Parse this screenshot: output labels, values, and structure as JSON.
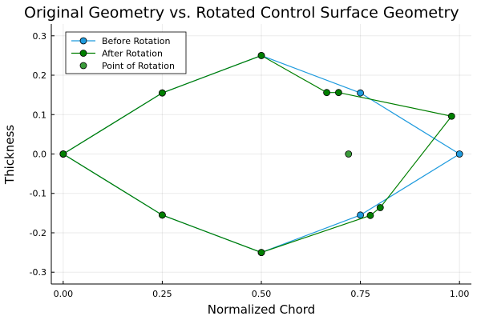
{
  "chart_data": {
    "type": "line",
    "title": "Original Geometry vs. Rotated Control Surface Geometry",
    "xlabel": "Normalized Chord",
    "ylabel": "Thickness",
    "xlim": [
      -0.03,
      1.03
    ],
    "ylim": [
      -0.33,
      0.33
    ],
    "xticks": [
      0.0,
      0.25,
      0.5,
      0.75,
      1.0
    ],
    "xtick_labels": [
      "0.00",
      "0.25",
      "0.50",
      "0.75",
      "1.00"
    ],
    "yticks": [
      -0.3,
      -0.2,
      -0.1,
      0.0,
      0.1,
      0.2,
      0.3
    ],
    "ytick_labels": [
      "-0.3",
      "-0.2",
      "-0.1",
      "0.0",
      "0.1",
      "0.2",
      "0.3"
    ],
    "grid": true,
    "legend_position": "top-left",
    "series": [
      {
        "name": "Before Rotation",
        "color": "#1f9bde",
        "style": "line-markers",
        "x": [
          0.0,
          0.25,
          0.5,
          0.75,
          1.0,
          0.75,
          0.5,
          0.25,
          0.0
        ],
        "y": [
          0.0,
          0.155,
          0.25,
          0.155,
          0.0,
          -0.155,
          -0.25,
          -0.155,
          0.0
        ]
      },
      {
        "name": "After Rotation",
        "color": "#007f00",
        "style": "line-markers",
        "x": [
          0.0,
          0.25,
          0.5,
          0.665,
          0.695,
          0.98,
          0.8,
          0.775,
          0.5,
          0.25,
          0.0
        ],
        "y": [
          0.0,
          0.155,
          0.25,
          0.156,
          0.156,
          0.096,
          -0.136,
          -0.156,
          -0.25,
          -0.155,
          0.0
        ]
      },
      {
        "name": "Point of Rotation",
        "color": "#3a9a3a",
        "style": "markers",
        "x": [
          0.72
        ],
        "y": [
          0.0
        ]
      }
    ]
  }
}
